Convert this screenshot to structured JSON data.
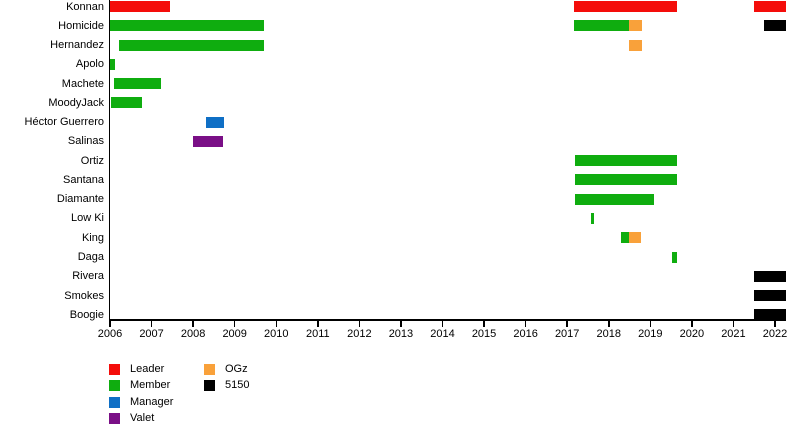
{
  "chart_data": {
    "type": "timeline-gantt",
    "x_axis": {
      "min": 2006,
      "max": 2022.26,
      "tick_years": [
        2006,
        2007,
        2008,
        2009,
        2010,
        2011,
        2012,
        2013,
        2014,
        2015,
        2016,
        2017,
        2018,
        2019,
        2020,
        2021,
        2022
      ]
    },
    "colors": {
      "leader": "#f40d0a",
      "member": "#0fad0f",
      "manager": "#0f6fc5",
      "valet": "#7a0f86",
      "ogz": "#f9a13a",
      "5150": "#000000"
    },
    "legend": {
      "position": "bottom-left",
      "columns": [
        [
          {
            "label": "Leader",
            "role": "leader"
          },
          {
            "label": "Member",
            "role": "member"
          },
          {
            "label": "Manager",
            "role": "manager"
          },
          {
            "label": "Valet",
            "role": "valet"
          }
        ],
        [
          {
            "label": "OGz",
            "role": "ogz"
          },
          {
            "label": "5150",
            "role": "5150"
          }
        ]
      ]
    },
    "rows": [
      {
        "name": "Konnan",
        "segments": [
          {
            "start": 2006.0,
            "end": 2007.44,
            "role": "leader"
          },
          {
            "start": 2017.16,
            "end": 2019.64,
            "role": "leader"
          },
          {
            "start": 2021.49,
            "end": 2022.26,
            "role": "leader"
          }
        ]
      },
      {
        "name": "Homicide",
        "segments": [
          {
            "start": 2006.0,
            "end": 2009.7,
            "role": "member"
          },
          {
            "start": 2017.16,
            "end": 2018.48,
            "role": "member"
          },
          {
            "start": 2018.48,
            "end": 2018.8,
            "role": "ogz"
          },
          {
            "start": 2021.73,
            "end": 2022.26,
            "role": "5150"
          }
        ]
      },
      {
        "name": "Hernandez",
        "segments": [
          {
            "start": 2006.22,
            "end": 2009.7,
            "role": "member"
          },
          {
            "start": 2018.48,
            "end": 2018.8,
            "role": "ogz"
          }
        ]
      },
      {
        "name": "Apolo",
        "segments": [
          {
            "start": 2006.0,
            "end": 2006.12,
            "role": "member"
          }
        ]
      },
      {
        "name": "Machete",
        "segments": [
          {
            "start": 2006.1,
            "end": 2007.23,
            "role": "member"
          }
        ]
      },
      {
        "name": "MoodyJack",
        "segments": [
          {
            "start": 2006.02,
            "end": 2006.77,
            "role": "member"
          }
        ]
      },
      {
        "name": "Héctor Guerrero",
        "segments": [
          {
            "start": 2008.31,
            "end": 2008.74,
            "role": "manager"
          }
        ]
      },
      {
        "name": "Salinas",
        "segments": [
          {
            "start": 2008.0,
            "end": 2008.72,
            "role": "valet"
          }
        ]
      },
      {
        "name": "Ortiz",
        "segments": [
          {
            "start": 2017.19,
            "end": 2019.64,
            "role": "member"
          }
        ]
      },
      {
        "name": "Santana",
        "segments": [
          {
            "start": 2017.19,
            "end": 2019.64,
            "role": "member"
          }
        ]
      },
      {
        "name": "Diamante",
        "segments": [
          {
            "start": 2017.19,
            "end": 2019.09,
            "role": "member"
          }
        ]
      },
      {
        "name": "Low Ki",
        "segments": [
          {
            "start": 2017.57,
            "end": 2017.64,
            "role": "member"
          }
        ]
      },
      {
        "name": "King",
        "segments": [
          {
            "start": 2018.29,
            "end": 2018.48,
            "role": "member"
          },
          {
            "start": 2018.48,
            "end": 2018.77,
            "role": "ogz"
          }
        ]
      },
      {
        "name": "Daga",
        "segments": [
          {
            "start": 2019.52,
            "end": 2019.64,
            "role": "member"
          }
        ]
      },
      {
        "name": "Rivera",
        "segments": [
          {
            "start": 2021.49,
            "end": 2022.26,
            "role": "5150"
          }
        ]
      },
      {
        "name": "Smokes",
        "segments": [
          {
            "start": 2021.49,
            "end": 2022.26,
            "role": "5150"
          }
        ]
      },
      {
        "name": "Boogie",
        "segments": [
          {
            "start": 2021.49,
            "end": 2022.26,
            "role": "5150"
          }
        ]
      }
    ]
  }
}
